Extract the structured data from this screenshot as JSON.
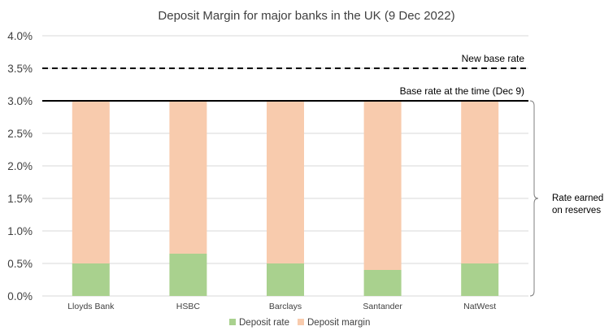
{
  "chart_data": {
    "type": "bar",
    "stacked": true,
    "title": "Deposit Margin for major banks in the UK (9 Dec 2022)",
    "categories": [
      "Lloyds Bank",
      "HSBC",
      "Barclays",
      "Santander",
      "NatWest"
    ],
    "series": [
      {
        "name": "Deposit rate",
        "values": [
          0.5,
          0.65,
          0.5,
          0.4,
          0.5
        ],
        "color": "#a9d18e"
      },
      {
        "name": "Deposit margin",
        "values": [
          2.5,
          2.35,
          2.5,
          2.6,
          2.5
        ],
        "color": "#f8cbad"
      }
    ],
    "ylim": [
      0,
      4.0
    ],
    "yticks": [
      0.0,
      0.5,
      1.0,
      1.5,
      2.0,
      2.5,
      3.0,
      3.5,
      4.0
    ],
    "ytick_labels": [
      "0.0%",
      "0.5%",
      "1.0%",
      "1.5%",
      "2.0%",
      "2.5%",
      "3.0%",
      "3.5%",
      "4.0%"
    ],
    "grid": true,
    "legend": "bottom",
    "reference_lines": [
      {
        "label": "New base rate",
        "value": 3.5,
        "style": "dashed"
      },
      {
        "label": "Base rate at the time (Dec 9)",
        "value": 3.0,
        "style": "solid"
      }
    ],
    "brace_annotation": {
      "line1": "Rate earned",
      "line2": "on reserves",
      "from": 0.0,
      "to": 3.0
    }
  }
}
